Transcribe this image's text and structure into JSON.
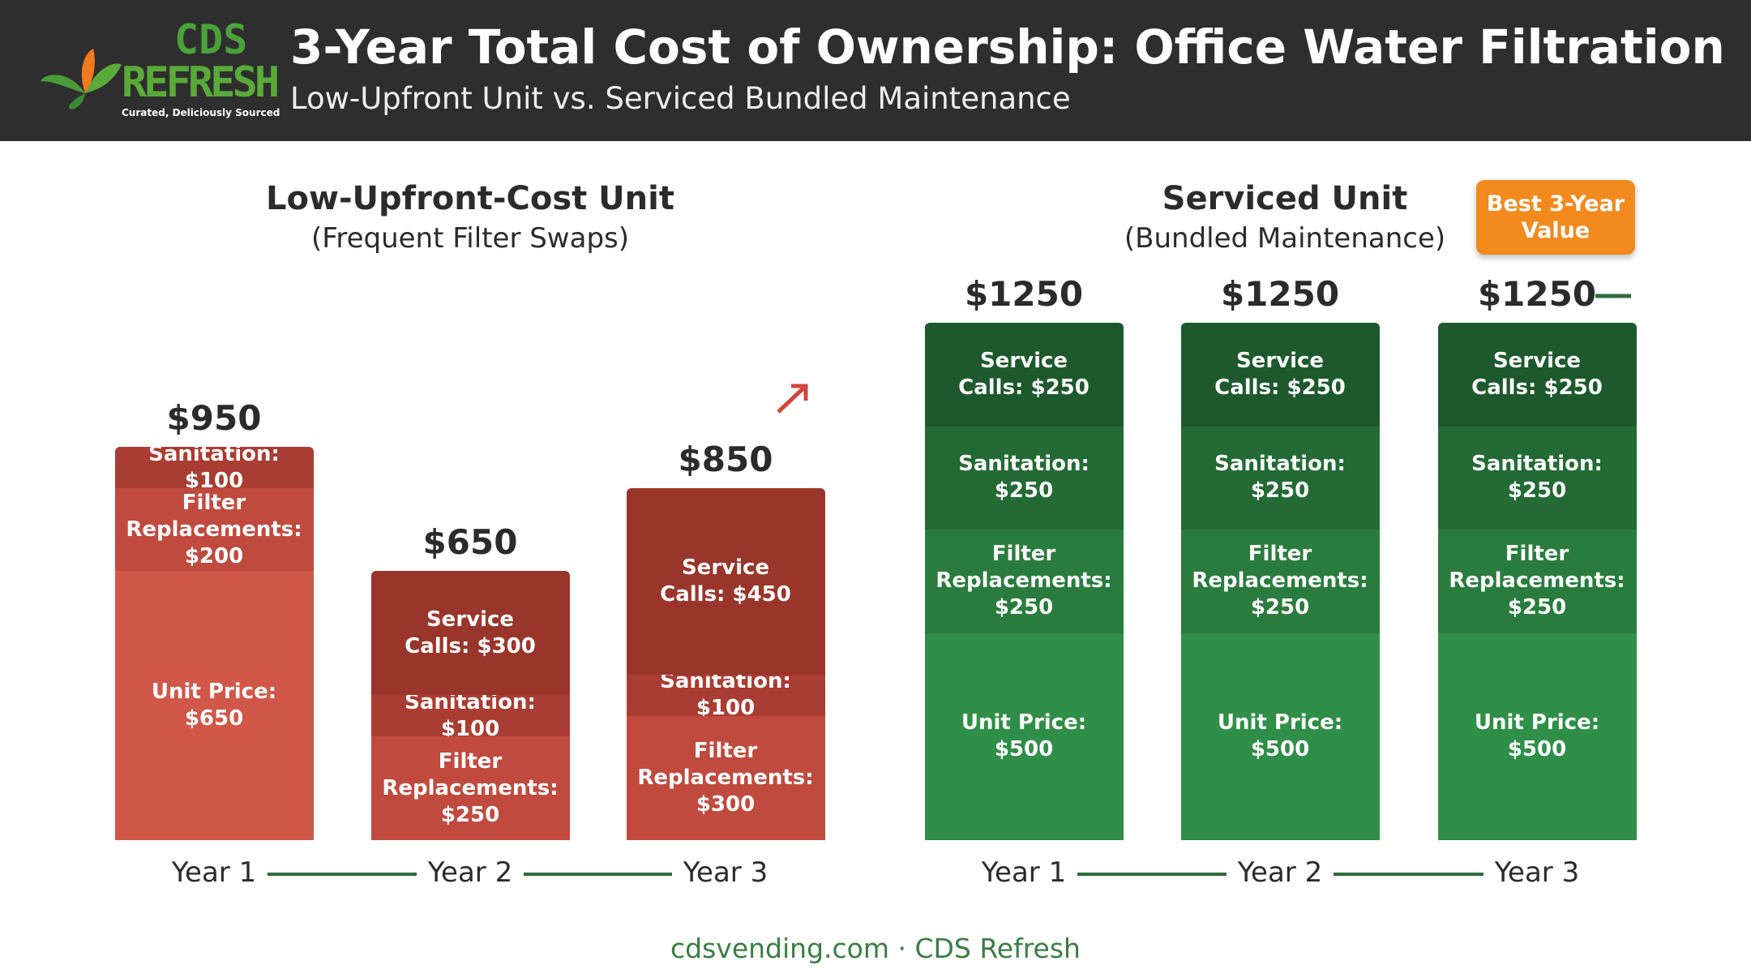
{
  "header": {
    "logo": {
      "line1": "CDS",
      "line2": "REFRESH",
      "tagline": "Curated, Deliciously Sourced"
    },
    "title": "3-Year Total Cost of Ownership: Office Water Filtration",
    "subtitle": "Low-Upfront Unit vs. Serviced Bundled Maintenance"
  },
  "chart_data": [
    {
      "type": "stacked_bar",
      "title": "Low-Upfront-Cost Unit",
      "subtitle": "(Frequent Filter Swaps)",
      "categories": [
        "Year 1",
        "Year 2",
        "Year 3"
      ],
      "totals": [
        950,
        650,
        850
      ],
      "total_labels": [
        "$950",
        "$650",
        "$850"
      ],
      "series": [
        {
          "name": "Unit Price",
          "color": "#d15749",
          "values": [
            650,
            null,
            null
          ],
          "value_labels": [
            "Unit Price: $650",
            null,
            null
          ]
        },
        {
          "name": "Filter Replacements",
          "color": "#c04a3e",
          "values": [
            200,
            250,
            300
          ],
          "value_labels": [
            "Filter Replacements: $200",
            "Filter Replacements: $250",
            "Filter Replacements: $300"
          ]
        },
        {
          "name": "Sanitation",
          "color": "#a93d33",
          "values": [
            100,
            100,
            100
          ],
          "value_labels": [
            "Sanitation: $100",
            "Sanitation: $100",
            "Sanitation: $100"
          ]
        },
        {
          "name": "Service Calls",
          "color": "#99352b",
          "values": [
            null,
            300,
            450
          ],
          "value_labels": [
            null,
            "Service Calls: $300",
            "Service Calls: $450"
          ]
        }
      ]
    },
    {
      "type": "stacked_bar",
      "title": "Serviced Unit",
      "subtitle": "(Bundled Maintenance)",
      "categories": [
        "Year 1",
        "Year 2",
        "Year 3"
      ],
      "totals": [
        1250,
        1250,
        1250
      ],
      "total_labels": [
        "$1250",
        "$1250",
        "$1250"
      ],
      "series": [
        {
          "name": "Unit Price",
          "color": "#2f8e47",
          "values": [
            500,
            500,
            500
          ],
          "value_labels": [
            "Unit Price: $500",
            "Unit Price: $500",
            "Unit Price: $500"
          ]
        },
        {
          "name": "Filter Replacements",
          "color": "#297c3d",
          "values": [
            250,
            250,
            250
          ],
          "value_labels": [
            "Filter Replacements: $250",
            "Filter Replacements: $250",
            "Filter Replacements: $250"
          ]
        },
        {
          "name": "Sanitation",
          "color": "#236a35",
          "values": [
            250,
            250,
            250
          ],
          "value_labels": [
            "Sanitation: $250",
            "Sanitation: $250",
            "Sanitation: $250"
          ]
        },
        {
          "name": "Service Calls",
          "color": "#1d592d",
          "values": [
            250,
            250,
            250
          ],
          "value_labels": [
            "Service Calls: $250",
            "Service Calls: $250",
            "Service Calls: $250"
          ]
        }
      ]
    }
  ],
  "badge": "Best 3-Year Value",
  "footer": "cdsvending.com · CDS Refresh"
}
